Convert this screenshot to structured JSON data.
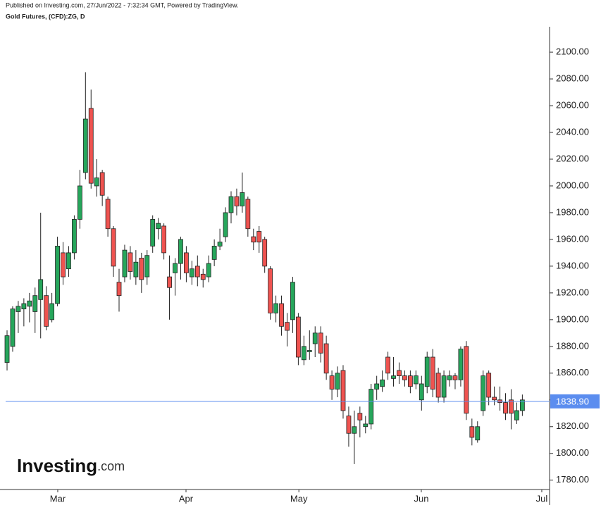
{
  "chart_data": {
    "type": "candlestick",
    "title": "Published on Investing.com, 27/Jun/2022 - 7:32:34 GMT, Powered by TradingView.",
    "subtitle": "Gold Futures, (CFD):ZG, D",
    "categories": [
      null,
      null,
      null,
      null,
      null,
      null,
      null,
      null,
      null,
      null,
      null,
      null,
      null,
      null,
      null,
      null,
      null,
      null,
      null,
      null,
      null,
      null,
      null,
      null,
      null,
      null,
      null,
      null,
      null,
      null,
      null,
      null,
      null,
      null,
      null,
      null,
      null,
      null,
      null,
      null,
      null,
      null,
      null,
      null,
      null,
      null,
      null,
      null,
      null,
      null,
      null,
      null,
      null,
      null,
      null,
      null,
      null,
      null,
      null,
      null,
      null,
      null,
      null,
      null,
      null,
      null,
      null,
      null,
      null,
      null,
      null,
      null,
      null,
      null,
      null,
      null,
      null,
      null,
      null,
      null,
      null,
      null,
      null,
      null,
      null,
      null,
      null,
      null,
      null,
      null,
      null,
      null,
      null
    ],
    "open": [
      1868,
      1880,
      1906,
      1908,
      1910,
      1906,
      1915,
      1918,
      1900,
      1912,
      1950,
      1938,
      1950,
      1975,
      2010,
      2058,
      2000,
      2010,
      1990,
      1968,
      1928,
      1932,
      1950,
      1932,
      1946,
      1932,
      1955,
      1968,
      1970,
      1932,
      1935,
      1942,
      1950,
      1932,
      1940,
      1934,
      1932,
      1945,
      1955,
      1962,
      1980,
      1992,
      1985,
      1990,
      1962,
      1966,
      1960,
      1938,
      1905,
      1912,
      1898,
      1900,
      1902,
      1870,
      1876,
      1882,
      1890,
      1882,
      1858,
      1848,
      1862,
      1828,
      1815,
      1830,
      1820,
      1822,
      1848,
      1850,
      1872,
      1856,
      1862,
      1858,
      1858,
      1852,
      1840,
      1850,
      1872,
      1860,
      1842,
      1855,
      1858,
      1855,
      1880,
      1820,
      1810,
      1832,
      1860,
      1842,
      1840,
      1838,
      1840,
      1825,
      1832
    ],
    "high": [
      1892,
      1910,
      1914,
      1916,
      1920,
      1924,
      1980,
      1925,
      1920,
      1962,
      1958,
      1955,
      1978,
      2012,
      2085,
      2072,
      2020,
      2012,
      1992,
      1970,
      1938,
      1956,
      1955,
      1952,
      1950,
      1952,
      1978,
      1976,
      1972,
      1948,
      1946,
      1962,
      1955,
      1944,
      1948,
      1938,
      1948,
      1960,
      1968,
      1984,
      1996,
      1998,
      2010,
      1992,
      1968,
      1970,
      1962,
      1940,
      1918,
      1918,
      1905,
      1932,
      1905,
      1888,
      1892,
      1895,
      1895,
      1888,
      1862,
      1865,
      1866,
      1835,
      1832,
      1835,
      1828,
      1852,
      1858,
      1862,
      1876,
      1872,
      1868,
      1862,
      1862,
      1862,
      1858,
      1876,
      1878,
      1864,
      1862,
      1862,
      1860,
      1880,
      1884,
      1826,
      1824,
      1862,
      1862,
      1850,
      1850,
      1845,
      1848,
      1838,
      1844
    ],
    "low": [
      1862,
      1876,
      1890,
      1895,
      1898,
      1890,
      1886,
      1892,
      1898,
      1910,
      1926,
      1932,
      1945,
      1968,
      2005,
      1998,
      1992,
      1985,
      1962,
      1932,
      1906,
      1928,
      1930,
      1926,
      1920,
      1926,
      1950,
      1960,
      1945,
      1900,
      1918,
      1930,
      1928,
      1926,
      1925,
      1924,
      1928,
      1940,
      1952,
      1958,
      1972,
      1978,
      1980,
      1962,
      1952,
      1950,
      1935,
      1900,
      1898,
      1888,
      1880,
      1890,
      1866,
      1866,
      1870,
      1872,
      1868,
      1855,
      1840,
      1842,
      1826,
      1805,
      1792,
      1812,
      1815,
      1818,
      1840,
      1846,
      1855,
      1850,
      1852,
      1850,
      1845,
      1848,
      1832,
      1845,
      1842,
      1838,
      1838,
      1850,
      1848,
      1850,
      1825,
      1806,
      1808,
      1828,
      1836,
      1836,
      1832,
      1825,
      1818,
      1822,
      1828
    ],
    "close": [
      1888,
      1908,
      1910,
      1912,
      1914,
      1918,
      1930,
      1895,
      1912,
      1955,
      1932,
      1950,
      1975,
      2000,
      2050,
      2002,
      2006,
      1993,
      1968,
      1940,
      1918,
      1952,
      1936,
      1943,
      1930,
      1948,
      1975,
      1972,
      1950,
      1924,
      1942,
      1960,
      1935,
      1938,
      1932,
      1930,
      1942,
      1955,
      1958,
      1980,
      1992,
      1985,
      1995,
      1968,
      1958,
      1958,
      1940,
      1905,
      1912,
      1895,
      1892,
      1928,
      1872,
      1880,
      1877,
      1890,
      1875,
      1860,
      1848,
      1860,
      1832,
      1815,
      1820,
      1825,
      1822,
      1848,
      1852,
      1855,
      1860,
      1858,
      1858,
      1855,
      1850,
      1858,
      1852,
      1872,
      1848,
      1842,
      1858,
      1858,
      1855,
      1878,
      1830,
      1812,
      1820,
      1858,
      1842,
      1840,
      1838,
      1830,
      1830,
      1832,
      1840
    ],
    "up_color": "#26a65b",
    "down_color": "#ef5350",
    "border_color": "#222222",
    "ylim": [
      1773,
      2119
    ],
    "yticks": [
      {
        "value": 1780,
        "label": "1780.00"
      },
      {
        "value": 1800,
        "label": "1800.00"
      },
      {
        "value": 1820,
        "label": "1820.00"
      },
      {
        "value": 1840,
        "label": "1840.00"
      },
      {
        "value": 1860,
        "label": "1860.00"
      },
      {
        "value": 1880,
        "label": "1880.00"
      },
      {
        "value": 1900,
        "label": "1900.00"
      },
      {
        "value": 1920,
        "label": "1920.00"
      },
      {
        "value": 1940,
        "label": "1940.00"
      },
      {
        "value": 1960,
        "label": "1960.00"
      },
      {
        "value": 1980,
        "label": "1980.00"
      },
      {
        "value": 2000,
        "label": "2000.00"
      },
      {
        "value": 2020,
        "label": "2020.00"
      },
      {
        "value": 2040,
        "label": "2040.00"
      },
      {
        "value": 2060,
        "label": "2060.00"
      },
      {
        "value": 2080,
        "label": "2080.00"
      },
      {
        "value": 2100,
        "label": "2100.00"
      }
    ],
    "xlim": [
      -1.26,
      96.86
    ],
    "xticks": [
      {
        "value": 9.05,
        "label": "Mar"
      },
      {
        "value": 31.95,
        "label": "Apr"
      },
      {
        "value": 52.1,
        "label": "May"
      },
      {
        "value": 73.96,
        "label": "Jun"
      },
      {
        "value": 95.47,
        "label": "Jul"
      }
    ],
    "last_price": {
      "value": 1838.9,
      "label": "1838.90",
      "color": "#5b8def"
    }
  },
  "logo": {
    "brand": "Investing",
    "suffix": ".com"
  }
}
